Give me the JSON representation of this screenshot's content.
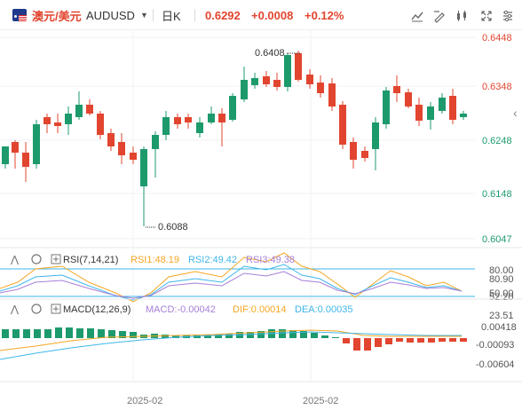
{
  "header": {
    "pair_cn": "澳元/美元",
    "pair_code": "AUDUSD",
    "period": "日K",
    "price": "0.6292",
    "change": "+0.0008",
    "change_pct": "+0.12%",
    "icons": [
      "line-style-icon",
      "drawing-icon",
      "compare-icon",
      "candle-type-icon",
      "expand-icon",
      "settings-icon"
    ]
  },
  "main_chart": {
    "y_labels": [
      "0.6448",
      "0.6348",
      "0.6248",
      "0.6148",
      "0.6047"
    ],
    "y_range": [
      0.6047,
      0.6448
    ],
    "high_marker": "0.6408",
    "low_marker": "0.6088",
    "colors": {
      "up": "#e2452f",
      "down": "#1d9a6c"
    }
  },
  "rsi_panel": {
    "title": "RSI(7,14,21)",
    "rsi1": "RSI1:48.19",
    "rsi2": "RSI2:49.42",
    "rsi3": "RSI3:49.38",
    "y_labels": [
      "80.00",
      "80.90",
      "50.00",
      "52.20",
      "23.51"
    ],
    "colors": {
      "rsi1": "#f5a623",
      "rsi2": "#3fb6e8",
      "rsi3": "#a77fd8"
    }
  },
  "macd_panel": {
    "title": "MACD(12,26,9)",
    "macd": "MACD:-0.00042",
    "dif": "DIF:0.00014",
    "dea": "DEA:0.00035",
    "y_labels": [
      "0.00418",
      "-0.00093",
      "-0.00604"
    ],
    "colors": {
      "macd": "#a77fd8",
      "dif": "#f5a623",
      "dea": "#3fb6e8"
    }
  },
  "x_axis": {
    "labels": [
      "2025-02",
      "2025-02"
    ]
  }
}
